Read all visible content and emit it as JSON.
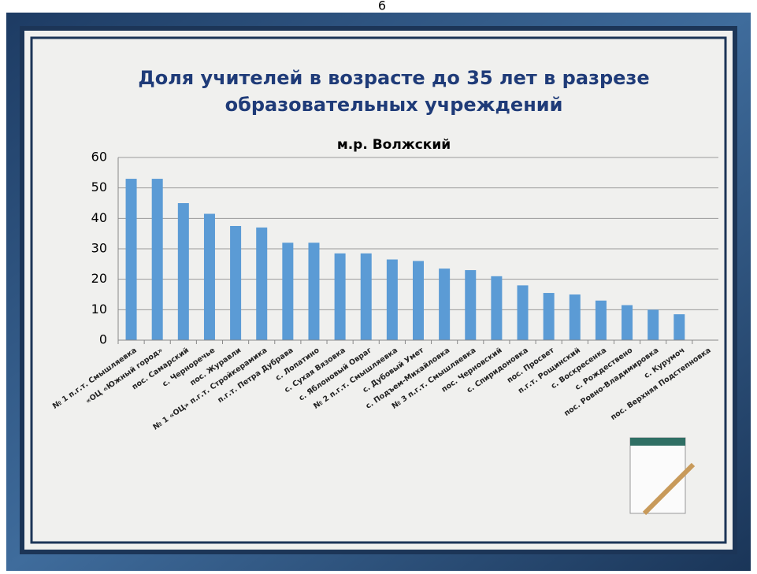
{
  "page_number": "6",
  "chart_data": {
    "type": "bar",
    "title": "Доля учителей  в возрасте до 35 лет в разрезе образовательных учреждений",
    "subtitle": "м.р. Волжский",
    "categories": [
      "№ 1 п.г.т. Смышляевка",
      "«ОЦ «Южный город»",
      "пос. Самарский",
      "с. Черноречье",
      "пос. Журавли",
      "№ 1 «ОЦ» п.г.т. Стройкерамика",
      "п.г.т. Петра Дубрава",
      "с. Лопатино",
      "с. Сухая Вязовка",
      "с. Яблоновый Овраг",
      "№ 2 п.г.т. Смышляевка",
      "с. Дубовый Умет",
      "с. Подъем-Михайловка",
      "№ 3 п.г.т. Смышляевка",
      "пос. Черновский",
      "с. Спиридоновка",
      "пос. Просвет",
      "п.г.т. Рощинский",
      "с. Воскресенка",
      "с. Рождествено",
      "пос. Ровно-Владимировка",
      "с. Курумоч",
      "пос. Верхняя Подстепновка"
    ],
    "values": [
      53,
      53,
      45,
      41.5,
      37.5,
      37,
      32,
      32,
      28.5,
      28.5,
      26.5,
      26,
      23.5,
      23,
      21,
      18,
      15.5,
      15,
      13,
      11.5,
      10,
      8.5,
      0
    ],
    "color": "#5b9bd5",
    "ylim": [
      0,
      60
    ],
    "yticks": [
      0,
      10,
      20,
      30,
      40,
      50,
      60
    ],
    "grid": true
  }
}
